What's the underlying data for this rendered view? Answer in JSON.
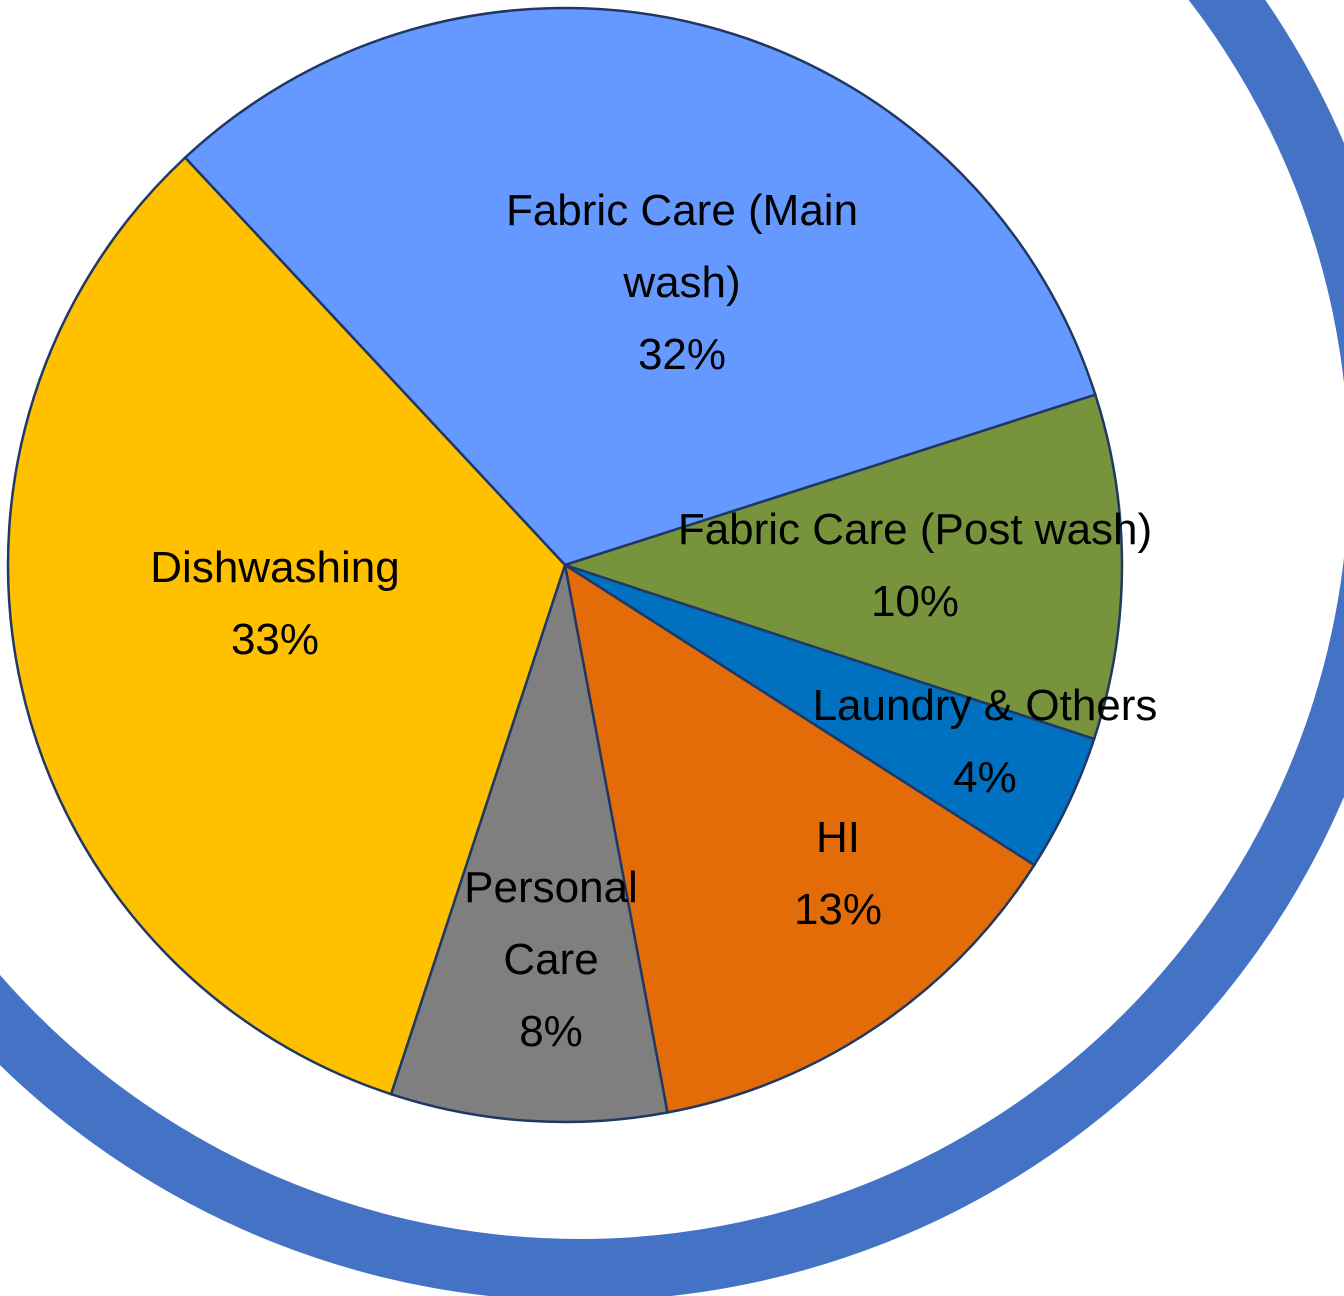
{
  "chart_data": {
    "type": "pie",
    "categories": [
      "Fabric Care (Main wash)",
      "Fabric Care (Post wash)",
      "Laundry & Others",
      "HI",
      "Personal Care",
      "Dishwashing"
    ],
    "values": [
      32,
      10,
      4,
      13,
      8,
      33
    ],
    "value_labels": [
      "32%",
      "10%",
      "4%",
      "13%",
      "8%",
      "33%"
    ],
    "colors": [
      "#6699ff",
      "#77933c",
      "#0070c0",
      "#e36c09",
      "#7f7f7f",
      "#ffc000"
    ]
  }
}
